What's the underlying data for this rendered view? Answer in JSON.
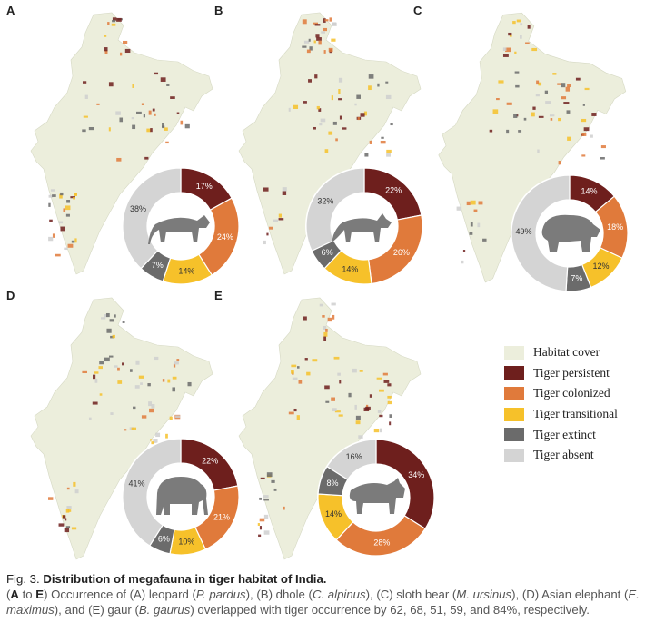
{
  "legend": [
    {
      "label": "Habitat cover",
      "color": "#eceedc"
    },
    {
      "label": "Tiger persistent",
      "color": "#6e1f1d"
    },
    {
      "label": "Tiger colonized",
      "color": "#e07a3b"
    },
    {
      "label": "Tiger transitional",
      "color": "#f6c12a"
    },
    {
      "label": "Tiger extinct",
      "color": "#6b6b6b"
    },
    {
      "label": "Tiger absent",
      "color": "#d4d4d4"
    }
  ],
  "icons": {
    "A": "leopard-icon",
    "B": "dhole-icon",
    "C": "sloth-bear-icon",
    "D": "elephant-icon",
    "E": "gaur-icon"
  },
  "chart_data": [
    {
      "type": "pie",
      "panel": "A",
      "categories": [
        "Tiger persistent",
        "Tiger colonized",
        "Tiger transitional",
        "Tiger extinct",
        "Tiger absent"
      ],
      "values": [
        17,
        24,
        14,
        7,
        38
      ]
    },
    {
      "type": "pie",
      "panel": "B",
      "categories": [
        "Tiger persistent",
        "Tiger colonized",
        "Tiger transitional",
        "Tiger extinct",
        "Tiger absent"
      ],
      "values": [
        22,
        26,
        14,
        6,
        32
      ]
    },
    {
      "type": "pie",
      "panel": "C",
      "categories": [
        "Tiger persistent",
        "Tiger colonized",
        "Tiger transitional",
        "Tiger extinct",
        "Tiger absent"
      ],
      "values": [
        14,
        18,
        12,
        7,
        49
      ]
    },
    {
      "type": "pie",
      "panel": "D",
      "categories": [
        "Tiger persistent",
        "Tiger colonized",
        "Tiger transitional",
        "Tiger extinct",
        "Tiger absent"
      ],
      "values": [
        22,
        21,
        10,
        6,
        41
      ]
    },
    {
      "type": "pie",
      "panel": "E",
      "categories": [
        "Tiger persistent",
        "Tiger colonized",
        "Tiger transitional",
        "Tiger extinct",
        "Tiger absent"
      ],
      "values": [
        34,
        28,
        14,
        8,
        16
      ]
    }
  ],
  "caption": {
    "fig_label": "Fig. 3.",
    "title": "Distribution of megafauna in tiger habitat of India.",
    "text_parts": [
      {
        "t": "(",
        "s": "n"
      },
      {
        "t": "A",
        "s": "b"
      },
      {
        "t": " to ",
        "s": "n"
      },
      {
        "t": "E",
        "s": "b"
      },
      {
        "t": ") Occurrence of (A) leopard (",
        "s": "n"
      },
      {
        "t": "P. pardus",
        "s": "i"
      },
      {
        "t": "), (B) dhole (",
        "s": "n"
      },
      {
        "t": "C. alpinus",
        "s": "i"
      },
      {
        "t": "), (C) sloth bear (",
        "s": "n"
      },
      {
        "t": "M. ursinus",
        "s": "i"
      },
      {
        "t": "), (D) Asian elephant (",
        "s": "n"
      },
      {
        "t": "E. maximus",
        "s": "i"
      },
      {
        "t": "), and (E) gaur (",
        "s": "n"
      },
      {
        "t": "B. gaurus",
        "s": "i"
      },
      {
        "t": ") overlapped with tiger occurrence by 62, 68, 51, 59, and 84%, respectively.",
        "s": "n"
      }
    ]
  }
}
